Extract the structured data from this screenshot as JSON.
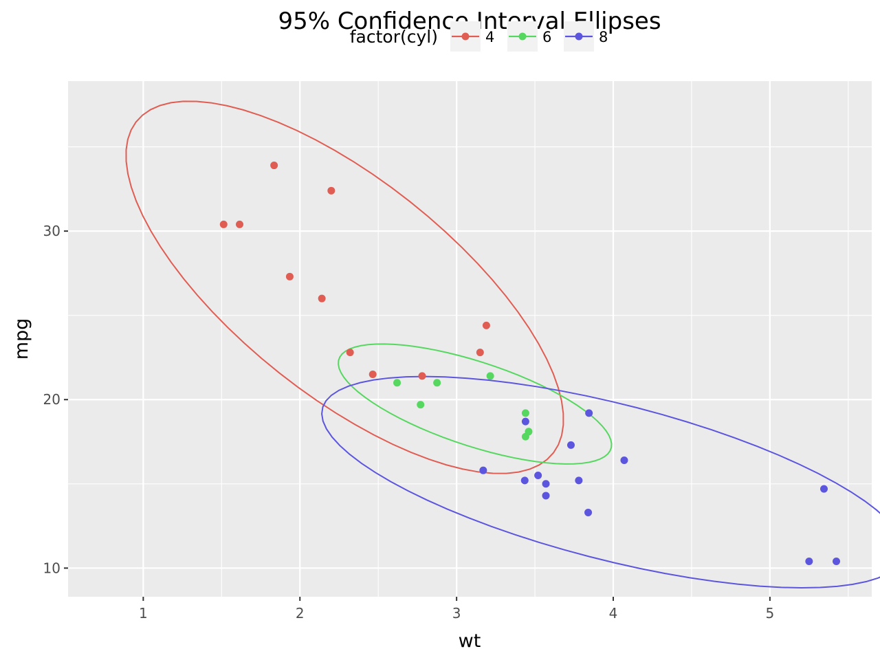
{
  "chart_data": {
    "type": "scatter",
    "title": "95% Confidence Interval Ellipses",
    "xlabel": "wt",
    "ylabel": "mpg",
    "xlim": [
      0.52,
      5.65
    ],
    "ylim": [
      8.3,
      38.9
    ],
    "x_ticks": [
      1,
      2,
      3,
      4,
      5
    ],
    "y_ticks": [
      10,
      20,
      30
    ],
    "grid": true,
    "legend": {
      "title": "factor(cyl)",
      "position": "top",
      "entries": [
        "4",
        "6",
        "8"
      ]
    },
    "colors": {
      "4": "#e05d53",
      "6": "#56d760",
      "8": "#5c55de"
    },
    "series": [
      {
        "name": "4",
        "points": [
          [
            1.835,
            33.9
          ],
          [
            2.2,
            32.4
          ],
          [
            1.513,
            30.4
          ],
          [
            1.615,
            30.4
          ],
          [
            1.935,
            27.3
          ],
          [
            2.14,
            26.0
          ],
          [
            3.19,
            24.4
          ],
          [
            2.32,
            22.8
          ],
          [
            3.15,
            22.8
          ],
          [
            2.465,
            21.5
          ],
          [
            2.78,
            21.4
          ]
        ],
        "ellipse": {
          "cx": 2.286,
          "cy": 26.66,
          "sd_x": 0.57,
          "sd_y": 4.51,
          "r": -0.71,
          "level": 0.95
        }
      },
      {
        "name": "6",
        "points": [
          [
            2.62,
            21.0
          ],
          [
            2.875,
            21.0
          ],
          [
            3.215,
            21.4
          ],
          [
            3.46,
            18.1
          ],
          [
            3.44,
            19.2
          ],
          [
            3.44,
            17.8
          ],
          [
            2.77,
            19.7
          ]
        ],
        "ellipse": {
          "cx": 3.117,
          "cy": 19.74,
          "sd_x": 0.356,
          "sd_y": 1.454,
          "r": -0.68,
          "level": 0.95
        }
      },
      {
        "name": "8",
        "points": [
          [
            3.44,
            18.7
          ],
          [
            3.57,
            14.3
          ],
          [
            4.07,
            16.4
          ],
          [
            3.73,
            17.3
          ],
          [
            3.78,
            15.2
          ],
          [
            5.25,
            10.4
          ],
          [
            5.424,
            10.4
          ],
          [
            5.345,
            14.7
          ],
          [
            3.52,
            15.5
          ],
          [
            3.435,
            15.2
          ],
          [
            3.84,
            13.3
          ],
          [
            3.845,
            19.2
          ],
          [
            3.17,
            15.8
          ],
          [
            3.57,
            15.0
          ]
        ],
        "ellipse": {
          "cx": 3.999,
          "cy": 15.1,
          "sd_x": 0.759,
          "sd_y": 2.56,
          "r": -0.65,
          "level": 0.95
        }
      }
    ]
  }
}
